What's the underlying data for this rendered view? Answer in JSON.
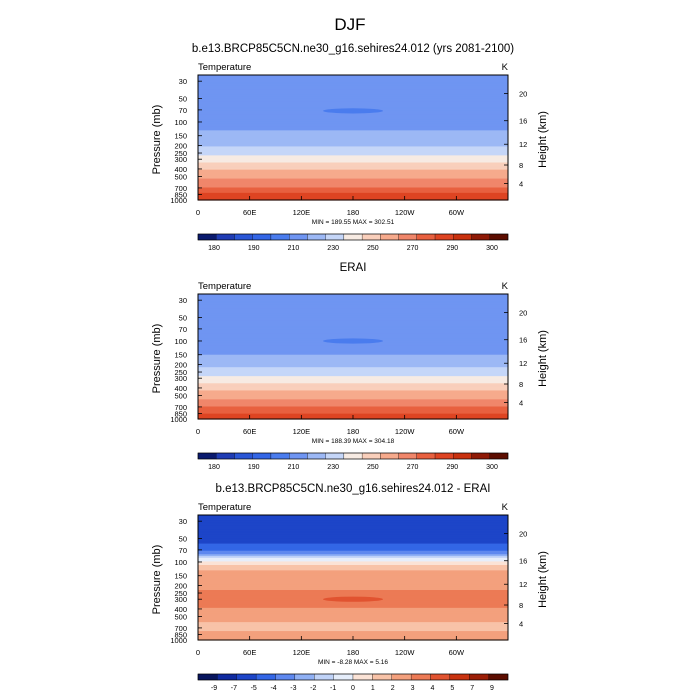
{
  "figure": {
    "title": "DJF"
  },
  "chart_data": [
    {
      "type": "heatmap",
      "title": "b.e13.BRCP85C5CN.ne30_g16.sehires24.012 (yrs 2081-2100)",
      "left_label": "Temperature",
      "right_label": "K",
      "ylabel": "Pressure (mb)",
      "ylabel_right": "Height (km)",
      "x_ticks": [
        "0",
        "60E",
        "120E",
        "180",
        "120W",
        "60W"
      ],
      "y_ticks": [
        "30",
        "50",
        "70",
        "100",
        "150",
        "200",
        "250",
        "300",
        "400",
        "500",
        "700",
        "850",
        "1000"
      ],
      "y_ticks_right": [
        "20",
        "16",
        "12",
        "8",
        "4"
      ],
      "minmax_text": "MIN = 189.55  MAX = 302.51",
      "colorbar_labels": [
        "180",
        "190",
        "210",
        "230",
        "250",
        "270",
        "290",
        "300"
      ],
      "levels": [
        175,
        180,
        185,
        190,
        200,
        210,
        220,
        230,
        240,
        250,
        260,
        270,
        280,
        290,
        295,
        300
      ],
      "colors": [
        "#0a1a6e",
        "#1f3cb4",
        "#2a56d6",
        "#3366e6",
        "#4a7cee",
        "#6f95f2",
        "#9cb8f5",
        "#c5d6f8",
        "#f7ebe3",
        "#f9cfbb",
        "#f6aa8c",
        "#f0866a",
        "#e8603f",
        "#de4422",
        "#c9310e",
        "#8f1a06",
        "#5c0d00"
      ],
      "profile": [
        {
          "p": 30,
          "v": 205
        },
        {
          "p": 70,
          "v": 203
        },
        {
          "p": 100,
          "v": 206
        },
        {
          "p": 150,
          "v": 212
        },
        {
          "p": 200,
          "v": 219
        },
        {
          "p": 250,
          "v": 227
        },
        {
          "p": 300,
          "v": 235
        },
        {
          "p": 400,
          "v": 248
        },
        {
          "p": 500,
          "v": 258
        },
        {
          "p": 700,
          "v": 271
        },
        {
          "p": 850,
          "v": 282
        },
        {
          "p": 1000,
          "v": 291
        }
      ],
      "blob": {
        "lon": 180,
        "p": 72,
        "v": 196
      }
    },
    {
      "type": "heatmap",
      "title": "ERAI",
      "left_label": "Temperature",
      "right_label": "K",
      "ylabel": "Pressure (mb)",
      "ylabel_right": "Height (km)",
      "x_ticks": [
        "0",
        "60E",
        "120E",
        "180",
        "120W",
        "60W"
      ],
      "y_ticks": [
        "30",
        "50",
        "70",
        "100",
        "150",
        "200",
        "250",
        "300",
        "400",
        "500",
        "700",
        "850",
        "1000"
      ],
      "y_ticks_right": [
        "20",
        "16",
        "12",
        "8",
        "4"
      ],
      "minmax_text": "MIN = 188.39  MAX = 304.18",
      "colorbar_labels": [
        "180",
        "190",
        "210",
        "230",
        "250",
        "270",
        "290",
        "300"
      ],
      "levels": [
        175,
        180,
        185,
        190,
        200,
        210,
        220,
        230,
        240,
        250,
        260,
        270,
        280,
        290,
        295,
        300
      ],
      "colors": [
        "#0a1a6e",
        "#1f3cb4",
        "#2a56d6",
        "#3366e6",
        "#4a7cee",
        "#6f95f2",
        "#9cb8f5",
        "#c5d6f8",
        "#f7ebe3",
        "#f9cfbb",
        "#f6aa8c",
        "#f0866a",
        "#e8603f",
        "#de4422",
        "#c9310e",
        "#8f1a06",
        "#5c0d00"
      ],
      "profile": [
        {
          "p": 30,
          "v": 205
        },
        {
          "p": 70,
          "v": 202
        },
        {
          "p": 100,
          "v": 204
        },
        {
          "p": 150,
          "v": 210
        },
        {
          "p": 200,
          "v": 218
        },
        {
          "p": 250,
          "v": 226
        },
        {
          "p": 300,
          "v": 233
        },
        {
          "p": 400,
          "v": 246
        },
        {
          "p": 500,
          "v": 256
        },
        {
          "p": 700,
          "v": 270
        },
        {
          "p": 850,
          "v": 280
        },
        {
          "p": 1000,
          "v": 290
        }
      ],
      "blob": {
        "lon": 180,
        "p": 100,
        "v": 196
      }
    },
    {
      "type": "heatmap",
      "title": "b.e13.BRCP85C5CN.ne30_g16.sehires24.012 - ERAI",
      "left_label": "Temperature",
      "right_label": "K",
      "ylabel": "Pressure (mb)",
      "ylabel_right": "Height (km)",
      "x_ticks": [
        "0",
        "60E",
        "120E",
        "180",
        "120W",
        "60W"
      ],
      "y_ticks": [
        "30",
        "50",
        "70",
        "100",
        "150",
        "200",
        "250",
        "300",
        "400",
        "500",
        "700",
        "850",
        "1000"
      ],
      "y_ticks_right": [
        "20",
        "16",
        "12",
        "8",
        "4"
      ],
      "minmax_text": "MIN = -8.28  MAX =  5.16",
      "colorbar_labels": [
        "-9",
        "-7",
        "-5",
        "-4",
        "-3",
        "-2",
        "-1",
        "0",
        "1",
        "2",
        "3",
        "4",
        "5",
        "7",
        "9"
      ],
      "levels": [
        -9,
        -7,
        -5,
        -4,
        -3,
        -2,
        -1,
        0,
        1,
        2,
        3,
        4,
        5,
        7,
        9
      ],
      "colors": [
        "#08155e",
        "#0f2aa0",
        "#1d45c8",
        "#3366e6",
        "#5e88ef",
        "#8fb0f4",
        "#c0d3f8",
        "#e6eefb",
        "#fbe3d6",
        "#f8c3a8",
        "#f3a07d",
        "#ec7a55",
        "#e15330",
        "#c93310",
        "#9c1e06",
        "#5c0d00"
      ],
      "profile": [
        {
          "p": 30,
          "v": -6.5
        },
        {
          "p": 50,
          "v": -5.5
        },
        {
          "p": 70,
          "v": -4.5
        },
        {
          "p": 85,
          "v": -2.0
        },
        {
          "p": 100,
          "v": 0.5
        },
        {
          "p": 130,
          "v": 2.2
        },
        {
          "p": 200,
          "v": 2.8
        },
        {
          "p": 300,
          "v": 3.4
        },
        {
          "p": 400,
          "v": 2.9
        },
        {
          "p": 500,
          "v": 2.4
        },
        {
          "p": 700,
          "v": 1.7
        },
        {
          "p": 850,
          "v": 2.3
        },
        {
          "p": 1000,
          "v": 2.6
        }
      ],
      "blob": {
        "lon": 180,
        "p": 300,
        "v": 4.5
      }
    }
  ]
}
